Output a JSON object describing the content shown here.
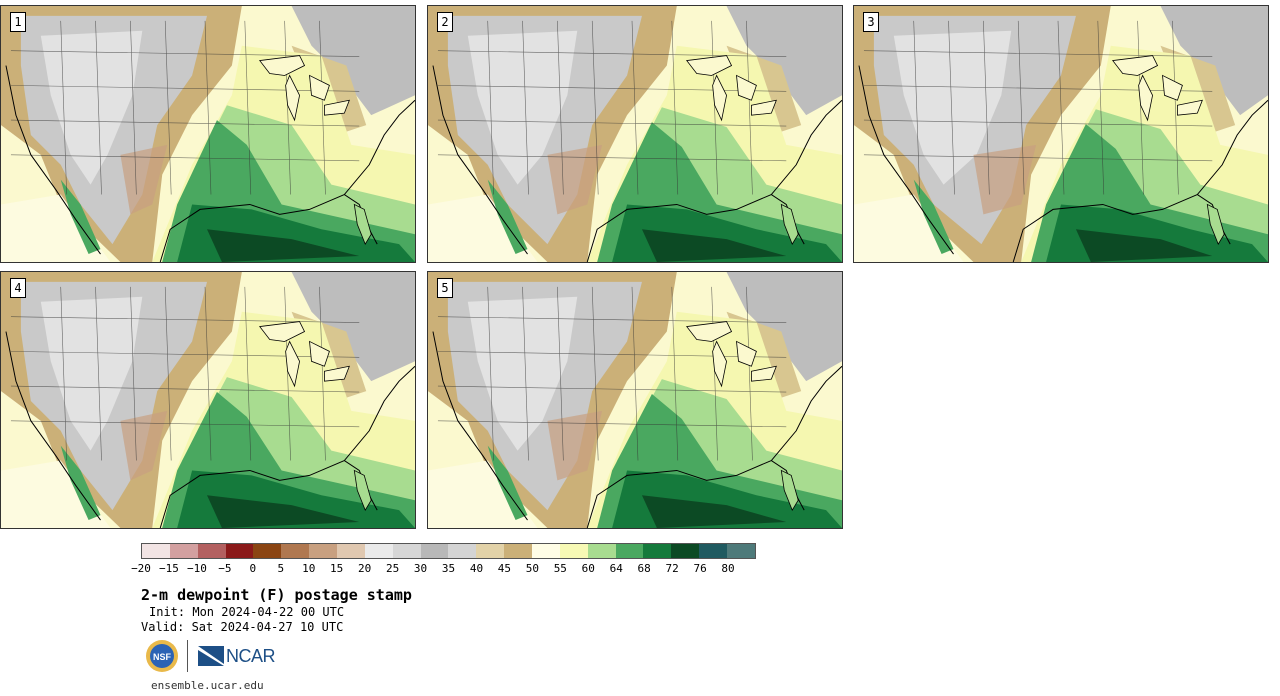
{
  "panels": [
    {
      "label": "1",
      "variant": 0
    },
    {
      "label": "2",
      "variant": 1
    },
    {
      "label": "3",
      "variant": 2
    },
    {
      "label": "4",
      "variant": 3
    },
    {
      "label": "5",
      "variant": 4
    }
  ],
  "colorbar": {
    "colors": [
      "#f2e4e4",
      "#d3a0a0",
      "#b36060",
      "#8b1a1a",
      "#8b4513",
      "#b07850",
      "#c8a080",
      "#e0c8b0",
      "#eaeaea",
      "#d6d6d6",
      "#b8b8b8",
      "#d4d4d4",
      "#e2d2a8",
      "#cbb078",
      "#fffde6",
      "#f7f9b5",
      "#a8dc90",
      "#4aa860",
      "#157a3c",
      "#0c4a24",
      "#1f5a60",
      "#4e7a7a"
    ],
    "ticks": [
      "−20",
      "−15",
      "−10",
      "−5",
      "0",
      "5",
      "10",
      "15",
      "20",
      "25",
      "30",
      "35",
      "40",
      "45",
      "50",
      "55",
      "60",
      "64",
      "68",
      "72",
      "76",
      "80"
    ]
  },
  "title": "2-m dewpoint (F) postage stamp",
  "init": "Init: Mon 2024-04-22 00 UTC",
  "valid": "Valid: Sat 2024-04-27 10 UTC",
  "logos": {
    "nsf": "NSF",
    "ncar": "NCAR"
  },
  "url": "ensemble.ucar.edu"
}
